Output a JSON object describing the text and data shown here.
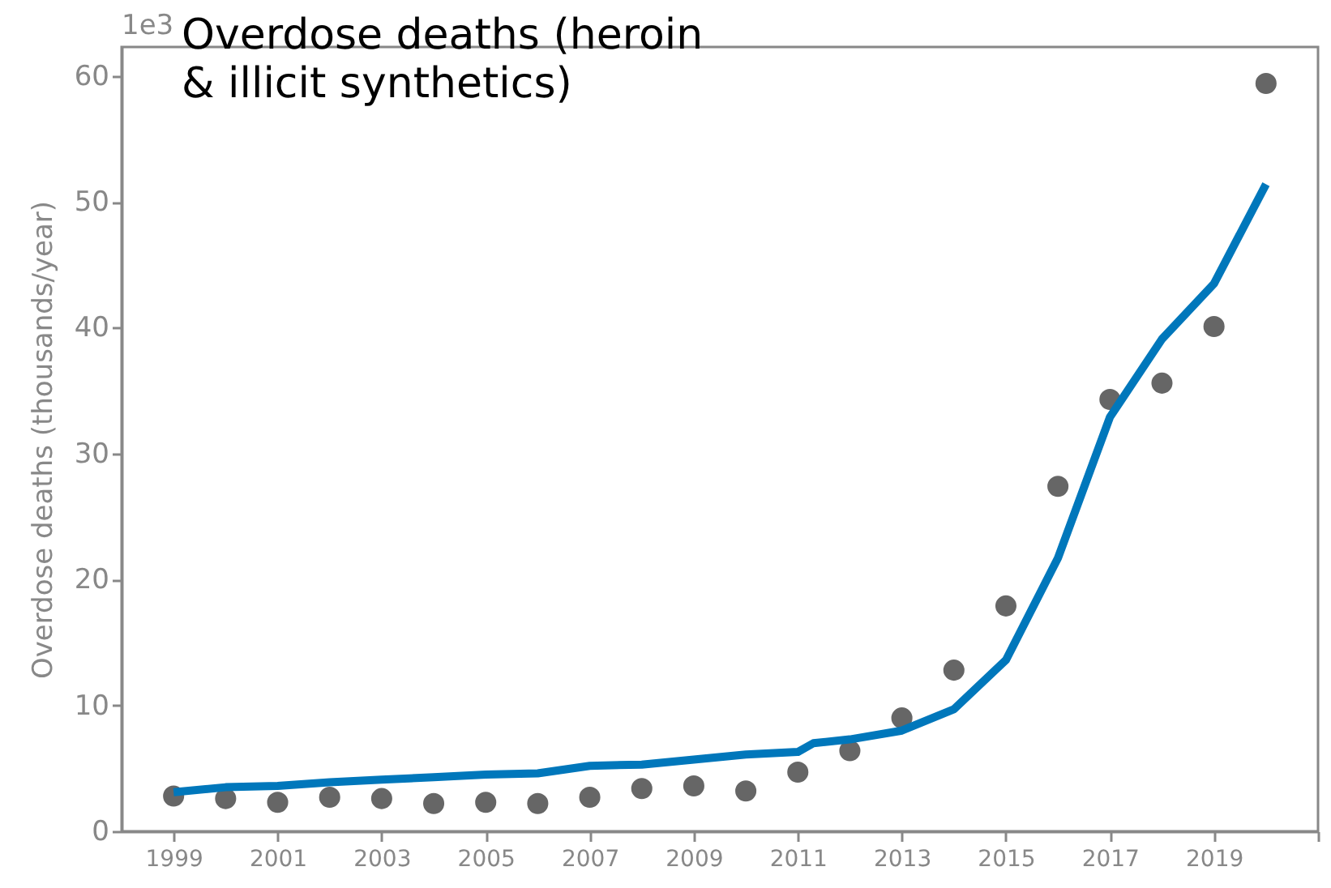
{
  "chart_data": {
    "type": "scatter",
    "title": "Overdose deaths (heroin & illicit synthetics)",
    "ylabel": "Overdose deaths (thousands/year)",
    "annotations": [
      "1e3"
    ],
    "xlim": [
      1998,
      2021
    ],
    "xticks": [
      1999,
      2001,
      2003,
      2005,
      2007,
      2009,
      2011,
      2013,
      2015,
      2017,
      2019,
      {
        "value": 2021,
        "label": null
      }
    ],
    "ylim": [
      0,
      62.3
    ],
    "yticks": [
      0,
      10,
      20,
      30,
      40,
      50,
      60
    ],
    "grid": false,
    "legend": false,
    "series": [
      {
        "color": "#666666",
        "marker": "circle",
        "x": [
          1999,
          2000,
          2001,
          2002,
          2003,
          2004,
          2005,
          2006,
          2007,
          2008,
          2009,
          2010,
          2011,
          2012,
          2013,
          2014,
          2015,
          2016,
          2017,
          2018,
          2019,
          2020
        ],
        "values": [
          2.8,
          2.6,
          2.3,
          2.7,
          2.6,
          2.2,
          2.3,
          2.2,
          2.7,
          3.4,
          3.6,
          3.2,
          4.7,
          6.4,
          9.0,
          12.8,
          17.9,
          27.4,
          34.3,
          35.6,
          40.1,
          59.4
        ]
      },
      {
        "type": "line",
        "color": "#0077bb",
        "x": [
          1999,
          2000,
          2001,
          2002,
          2003,
          2004,
          2005,
          2006,
          2007,
          2008,
          2009,
          2010,
          2011,
          2011.3,
          2012,
          2013,
          2014,
          2015,
          2016,
          2017,
          2018,
          2019,
          2020
        ],
        "values": [
          3.1,
          3.5,
          3.6,
          3.9,
          4.1,
          4.3,
          4.5,
          4.6,
          5.2,
          5.3,
          5.7,
          6.1,
          6.3,
          7.0,
          7.3,
          8.0,
          9.7,
          13.6,
          21.7,
          32.9,
          39.1,
          43.5,
          51.4
        ]
      }
    ]
  }
}
